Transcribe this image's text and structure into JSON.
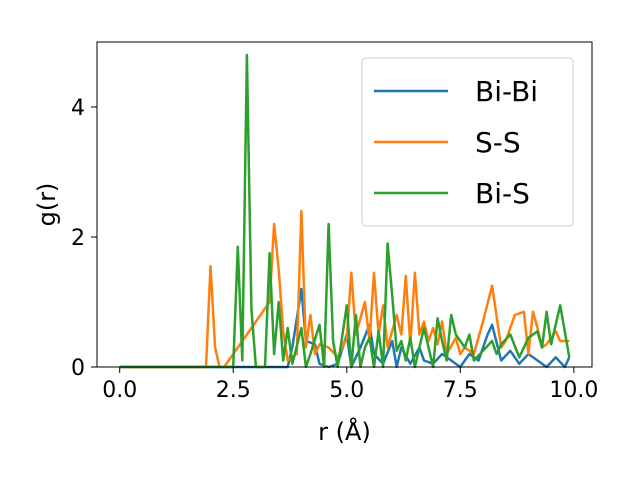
{
  "chart_data": {
    "type": "line",
    "xlabel": "r (Å)",
    "ylabel": "g(r)",
    "xlim": [
      -0.5,
      10.4
    ],
    "ylim": [
      0,
      5.0
    ],
    "xticks": [
      0.0,
      2.5,
      5.0,
      7.5,
      10.0
    ],
    "xtick_labels": [
      "0.0",
      "2.5",
      "5.0",
      "7.5",
      "10.0"
    ],
    "yticks": [
      0,
      2,
      4
    ],
    "ytick_labels": [
      "0",
      "2",
      "4"
    ],
    "grid": false,
    "legend_position": "top-right",
    "series": [
      {
        "name": "Bi-Bi",
        "color": "#1f77b4",
        "x": [
          0.0,
          3.2,
          3.7,
          3.8,
          4.0,
          4.1,
          4.3,
          4.4,
          4.6,
          4.8,
          5.0,
          5.1,
          5.3,
          5.5,
          5.6,
          5.8,
          6.0,
          6.1,
          6.2,
          6.4,
          6.6,
          6.7,
          6.9,
          7.1,
          7.3,
          7.5,
          7.7,
          7.9,
          8.1,
          8.2,
          8.4,
          8.6,
          8.8,
          9.0,
          9.2,
          9.4,
          9.6,
          9.8,
          9.9
        ],
        "y": [
          0.0,
          0.0,
          0.0,
          0.3,
          1.2,
          0.4,
          0.35,
          0.05,
          0.0,
          0.05,
          0.5,
          0.0,
          0.3,
          0.65,
          0.2,
          0.05,
          0.4,
          0.0,
          0.3,
          0.05,
          0.3,
          0.1,
          0.05,
          0.2,
          0.1,
          0.0,
          0.2,
          0.1,
          0.5,
          0.65,
          0.1,
          0.25,
          0.05,
          0.2,
          0.1,
          0.0,
          0.15,
          0.0,
          0.15
        ]
      },
      {
        "name": "S-S",
        "color": "#ff7f0e",
        "x": [
          0.0,
          1.9,
          2.0,
          2.1,
          2.2,
          2.3,
          3.3,
          3.4,
          3.5,
          3.6,
          3.7,
          3.9,
          4.0,
          4.1,
          4.2,
          4.3,
          4.4,
          4.6,
          4.8,
          5.0,
          5.1,
          5.2,
          5.4,
          5.5,
          5.6,
          5.7,
          5.8,
          5.9,
          6.1,
          6.2,
          6.3,
          6.4,
          6.5,
          6.6,
          6.7,
          6.8,
          6.9,
          7.0,
          7.1,
          7.2,
          7.4,
          7.5,
          7.6,
          7.8,
          8.0,
          8.2,
          8.4,
          8.5,
          8.7,
          8.9,
          9.0,
          9.1,
          9.2,
          9.3,
          9.4,
          9.6,
          9.7,
          9.9
        ],
        "y": [
          0.0,
          0.0,
          1.55,
          0.3,
          0.0,
          0.0,
          1.0,
          2.2,
          1.5,
          0.55,
          0.1,
          0.2,
          2.4,
          0.3,
          0.8,
          0.2,
          0.35,
          0.3,
          0.15,
          0.45,
          1.45,
          0.5,
          1.0,
          0.4,
          1.45,
          0.5,
          0.95,
          0.3,
          0.8,
          0.5,
          1.4,
          0.35,
          1.45,
          0.5,
          0.7,
          0.4,
          0.6,
          0.35,
          0.7,
          0.2,
          0.45,
          0.2,
          0.3,
          0.2,
          0.7,
          1.25,
          0.3,
          0.4,
          0.8,
          0.85,
          0.2,
          0.85,
          0.6,
          0.3,
          0.35,
          0.55,
          0.4,
          0.4
        ]
      },
      {
        "name": "Bi-S",
        "color": "#2ca02c",
        "x": [
          0.0,
          2.4,
          2.5,
          2.6,
          2.7,
          2.8,
          2.9,
          3.0,
          3.2,
          3.3,
          3.4,
          3.5,
          3.6,
          3.7,
          3.8,
          4.0,
          4.1,
          4.2,
          4.4,
          4.5,
          4.6,
          4.7,
          4.8,
          5.0,
          5.1,
          5.2,
          5.3,
          5.4,
          5.5,
          5.6,
          5.7,
          5.8,
          5.9,
          6.0,
          6.1,
          6.2,
          6.3,
          6.4,
          6.5,
          6.6,
          6.7,
          6.9,
          7.0,
          7.1,
          7.2,
          7.3,
          7.4,
          7.6,
          7.7,
          7.8,
          8.0,
          8.2,
          8.3,
          8.4,
          8.6,
          8.8,
          9.0,
          9.2,
          9.3,
          9.4,
          9.5,
          9.7,
          9.9
        ],
        "y": [
          0.0,
          0.0,
          0.0,
          1.85,
          0.1,
          4.8,
          0.9,
          0.0,
          0.0,
          1.75,
          0.2,
          1.0,
          0.1,
          0.6,
          0.05,
          0.6,
          0.0,
          0.2,
          0.65,
          0.0,
          2.2,
          0.4,
          0.0,
          0.95,
          0.0,
          0.8,
          0.0,
          0.3,
          0.45,
          0.0,
          0.55,
          0.0,
          1.9,
          1.1,
          0.25,
          0.4,
          0.1,
          0.45,
          0.0,
          0.3,
          0.6,
          0.0,
          0.75,
          0.4,
          0.1,
          0.8,
          0.5,
          0.3,
          0.5,
          0.1,
          0.25,
          0.4,
          0.2,
          0.35,
          0.5,
          0.15,
          0.45,
          0.55,
          0.3,
          0.85,
          0.35,
          0.95,
          0.15
        ]
      }
    ]
  }
}
